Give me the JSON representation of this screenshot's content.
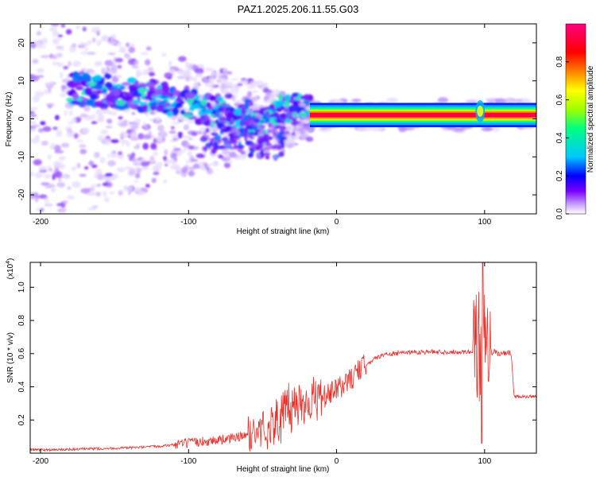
{
  "title": "PAZ1.2025.206.11.55.G03",
  "chart_data": [
    {
      "type": "heatmap",
      "xlabel": "Height of straight line (km)",
      "ylabel": "Frequency (Hz)",
      "xlim": [
        -207,
        135
      ],
      "ylim": [
        -25,
        25
      ],
      "xticks": [
        -200,
        -100,
        0,
        100
      ],
      "yticks": [
        -20,
        -10,
        0,
        10,
        20
      ],
      "colorbar": {
        "label": "Normalized spectral amplitude",
        "range": [
          0,
          1
        ],
        "ticks": [
          "0.0",
          "0.2",
          "0.4",
          "0.6",
          "0.8"
        ],
        "colors": [
          "#ffffff",
          "#c8a0ff",
          "#7a00ff",
          "#0000ff",
          "#00c8ff",
          "#00ff80",
          "#a0ff00",
          "#ffff00",
          "#ff8000",
          "#ff0000",
          "#ff0080"
        ]
      },
      "ridge": {
        "description_points": [
          [
            -180,
            8
          ],
          [
            -160,
            7.5
          ],
          [
            -140,
            6.5
          ],
          [
            -120,
            5.5
          ],
          [
            -100,
            4
          ],
          [
            -80,
            2
          ],
          [
            -70,
            -2
          ],
          [
            -60,
            1
          ],
          [
            -50,
            -3
          ],
          [
            -40,
            2
          ],
          [
            -30,
            3
          ],
          [
            -20,
            2
          ],
          [
            -10,
            1.5
          ],
          [
            0,
            1.5
          ],
          [
            20,
            1
          ],
          [
            50,
            1
          ],
          [
            80,
            1
          ],
          [
            95,
            2
          ],
          [
            100,
            1
          ],
          [
            120,
            1
          ],
          [
            135,
            1
          ]
        ]
      }
    },
    {
      "type": "line",
      "xlabel": "Height of straight line (km)",
      "ylabel": "SNR (10 * v/v)",
      "exponent_label": "(x10",
      "exponent_sup": "4",
      "exponent_close": ")",
      "xlim": [
        -207,
        135
      ],
      "ylim": [
        0,
        1.15
      ],
      "xticks": [
        -200,
        -100,
        0,
        100
      ],
      "yticks": [
        0.2,
        0.4,
        0.6,
        0.8,
        1.0
      ],
      "ytick_labels": [
        "0.2",
        "0.4",
        "0.6",
        "0.8",
        "1.0"
      ],
      "series": [
        {
          "color": "#e8302a",
          "x": [
            -207,
            -190,
            -170,
            -150,
            -130,
            -110,
            -100,
            -90,
            -80,
            -70,
            -60,
            -50,
            -40,
            -30,
            -20,
            -10,
            0,
            10,
            20,
            30,
            40,
            50,
            60,
            70,
            80,
            90,
            95,
            100,
            105,
            110,
            118,
            120,
            125,
            135
          ],
          "y": [
            0.02,
            0.02,
            0.025,
            0.03,
            0.035,
            0.05,
            0.06,
            0.07,
            0.08,
            0.09,
            0.11,
            0.14,
            0.19,
            0.28,
            0.32,
            0.33,
            0.38,
            0.45,
            0.54,
            0.59,
            0.6,
            0.61,
            0.61,
            0.61,
            0.61,
            0.61,
            0.62,
            0.65,
            0.61,
            0.6,
            0.6,
            0.34,
            0.34,
            0.34
          ]
        }
      ]
    }
  ]
}
